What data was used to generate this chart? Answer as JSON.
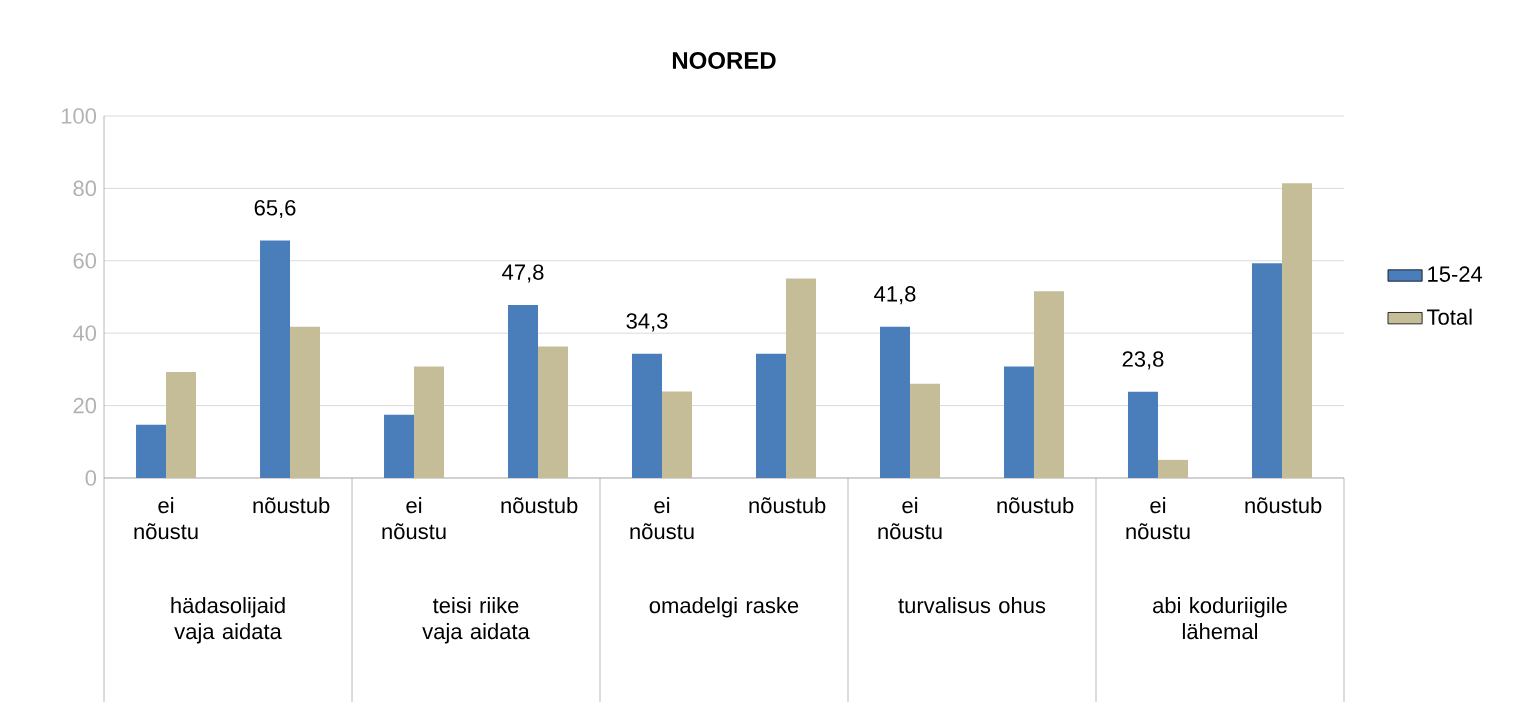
{
  "chart_data": {
    "type": "bar",
    "title": "NOORED",
    "categories": [
      "ei nõustu",
      "nõustub",
      "ei nõustu",
      "nõustub",
      "ei nõustu",
      "nõustub",
      "ei nõustu",
      "nõustub",
      "ei nõustu",
      "nõustub"
    ],
    "series": [
      {
        "name": "15-24",
        "color": "#4a7ebb",
        "values": [
          14.7,
          65.6,
          17.5,
          47.8,
          34.3,
          34.3,
          41.8,
          30.8,
          23.8,
          59.3
        ],
        "value_labels": [
          null,
          "65,6",
          null,
          "47,8",
          "34,3",
          null,
          "41,8",
          null,
          "23,8",
          null
        ]
      },
      {
        "name": "Total",
        "color": "#c4bd97",
        "values": [
          29.3,
          41.8,
          30.8,
          36.3,
          23.9,
          55.1,
          26.0,
          51.6,
          5.0,
          81.4
        ]
      }
    ],
    "annotations": [
      "hädasolijaid vaja aidata",
      "teisi riike vaja aidata",
      "omadelgi raske",
      "turvalisus ohus",
      "abi koduriigile lähemal"
    ],
    "ylim": [
      0,
      100
    ],
    "yticks": [
      0,
      20,
      40,
      60,
      80,
      100
    ],
    "grid": "y",
    "legend": "right"
  }
}
